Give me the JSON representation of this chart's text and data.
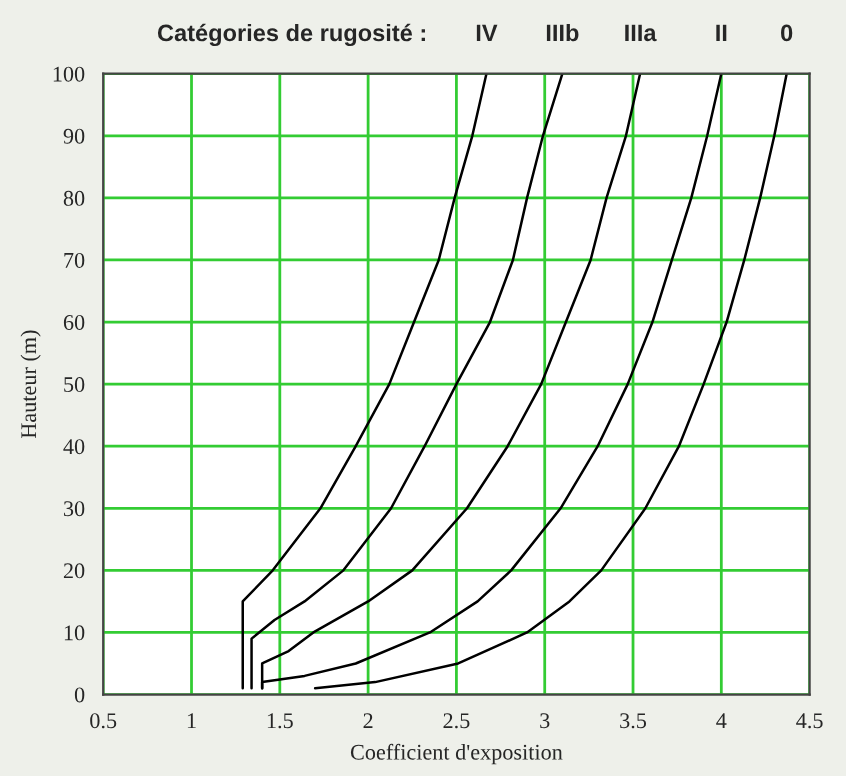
{
  "chart_data": {
    "type": "line",
    "title": "Catégories de rugosité :",
    "xlabel": "Coefficient d'exposition",
    "ylabel": "Hauteur (m)",
    "xlim": [
      0.5,
      4.5
    ],
    "xticks": [
      0.5,
      1,
      1.5,
      2,
      2.5,
      3,
      3.5,
      4,
      4.5
    ],
    "ylim": [
      0,
      100
    ],
    "yticks": [
      0,
      10,
      20,
      30,
      40,
      50,
      60,
      70,
      80,
      90,
      100
    ],
    "grid": true,
    "marker": "none",
    "line_style": "solid",
    "series": [
      {
        "name": "IV",
        "color": "#000000",
        "x": [
          1.29,
          1.29,
          1.46,
          1.73,
          1.93,
          2.12,
          2.26,
          2.4,
          2.49,
          2.59,
          2.67
        ],
        "values": [
          1,
          15,
          20,
          30,
          40,
          50,
          60,
          70,
          80,
          90,
          100
        ]
      },
      {
        "name": "IIIb",
        "color": "#000000",
        "x": [
          1.34,
          1.34,
          1.47,
          1.64,
          1.86,
          2.13,
          2.32,
          2.5,
          2.69,
          2.82,
          2.9,
          2.99,
          3.1
        ],
        "values": [
          1,
          9,
          12,
          15,
          20,
          30,
          40,
          50,
          60,
          70,
          80,
          90,
          100
        ]
      },
      {
        "name": "IIIa",
        "color": "#000000",
        "x": [
          1.4,
          1.4,
          1.55,
          1.69,
          2.0,
          2.25,
          2.56,
          2.79,
          2.98,
          3.12,
          3.26,
          3.35,
          3.46,
          3.54
        ],
        "values": [
          1,
          5,
          7,
          10,
          15,
          20,
          30,
          40,
          50,
          60,
          70,
          80,
          90,
          100
        ]
      },
      {
        "name": "II",
        "color": "#000000",
        "x": [
          1.4,
          1.4,
          1.64,
          1.93,
          2.35,
          2.62,
          2.81,
          3.09,
          3.3,
          3.47,
          3.61,
          3.72,
          3.83,
          3.92,
          4.0
        ],
        "values": [
          1,
          2,
          3,
          5,
          10,
          15,
          20,
          30,
          40,
          50,
          60,
          70,
          80,
          90,
          100
        ]
      },
      {
        "name": "0",
        "color": "#000000",
        "x": [
          1.7,
          2.04,
          2.51,
          2.9,
          3.14,
          3.32,
          3.57,
          3.76,
          3.9,
          4.03,
          4.13,
          4.22,
          4.3,
          4.37
        ],
        "values": [
          1,
          2,
          5,
          10,
          15,
          20,
          30,
          40,
          50,
          60,
          70,
          80,
          90,
          100
        ]
      }
    ]
  }
}
